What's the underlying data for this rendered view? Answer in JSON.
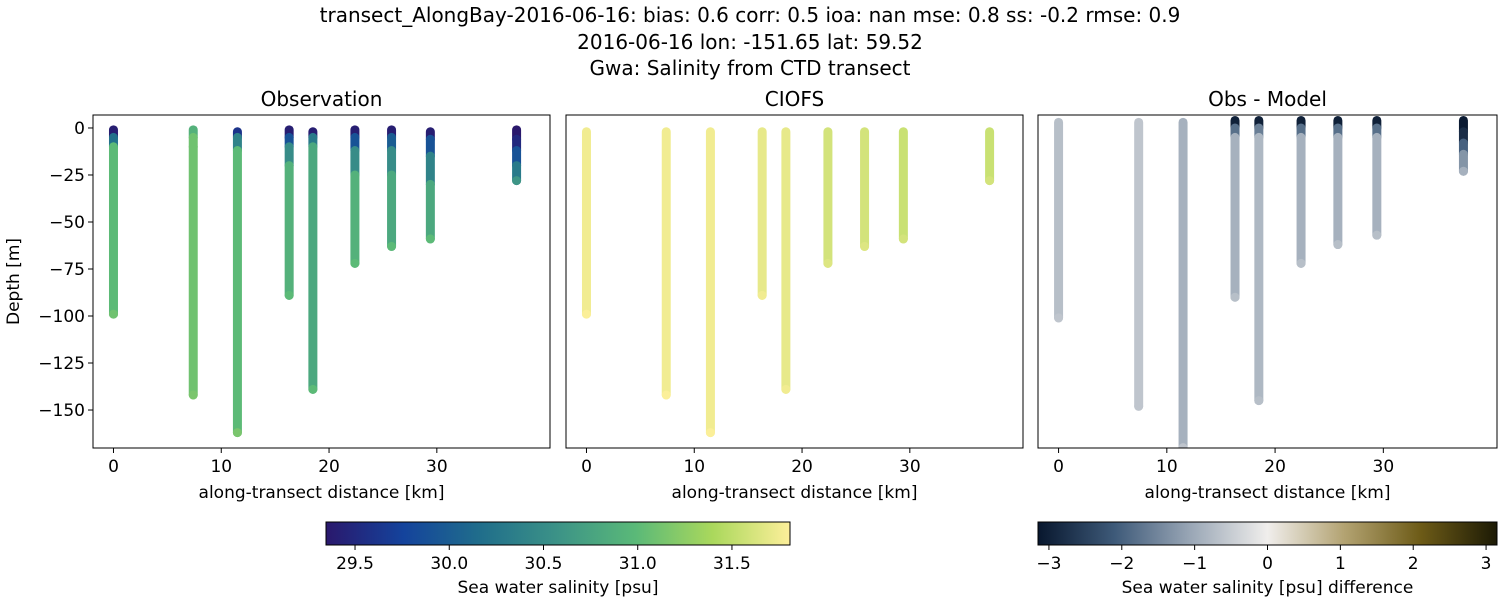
{
  "title": [
    "transect_AlongBay-2016-06-16: bias: 0.6  corr: 0.5  ioa: nan  mse: 0.8  ss: -0.2  rmse: 0.9",
    "2016-06-16 lon: -151.65 lat: 59.52",
    "Gwa: Salinity from CTD transect"
  ],
  "chart_data": [
    {
      "type": "scatter",
      "title": "Observation",
      "xlabel": "along-transect distance [km]",
      "ylabel": "Depth [m]",
      "colorbar": 0,
      "xlim": [
        -1.9,
        40.5
      ],
      "ylim": [
        -170.2,
        6.9
      ],
      "xticks": [
        0,
        10,
        20,
        30
      ],
      "yticks": [
        0,
        {
          "value": -25,
          "label": "−25"
        },
        {
          "value": -50,
          "label": "−50"
        },
        {
          "value": -75,
          "label": "−75"
        },
        {
          "value": -100,
          "label": "−100"
        },
        {
          "value": -125,
          "label": "−125"
        },
        {
          "value": -150,
          "label": "−150"
        }
      ],
      "profiles": [
        {
          "x": 0,
          "depth": [
            -1,
            -5,
            -10,
            -99
          ],
          "values": [
            29.4,
            30.2,
            31.0,
            31.1
          ]
        },
        {
          "x": 7.4,
          "depth": [
            -1,
            -5,
            -10,
            -142
          ],
          "values": [
            30.9,
            31.1,
            31.1,
            31.15
          ]
        },
        {
          "x": 11.5,
          "depth": [
            -2,
            -5,
            -12,
            -162
          ],
          "values": [
            29.6,
            30.4,
            31.0,
            31.15
          ]
        },
        {
          "x": 16.3,
          "depth": [
            -1,
            -5,
            -10,
            -20,
            -89
          ],
          "values": [
            29.4,
            29.9,
            30.5,
            30.9,
            31.0
          ]
        },
        {
          "x": 18.5,
          "depth": [
            -2,
            -5,
            -10,
            -139
          ],
          "values": [
            29.4,
            30.3,
            30.8,
            31.0
          ]
        },
        {
          "x": 22.4,
          "depth": [
            -1,
            -5,
            -12,
            -25,
            -72
          ],
          "values": [
            29.4,
            29.9,
            30.5,
            30.9,
            31.0
          ]
        },
        {
          "x": 25.8,
          "depth": [
            -1,
            -5,
            -12,
            -25,
            -63
          ],
          "values": [
            29.4,
            30.0,
            30.5,
            30.8,
            31.0
          ]
        },
        {
          "x": 29.4,
          "depth": [
            -2,
            -6,
            -15,
            -30,
            -59
          ],
          "values": [
            29.4,
            29.9,
            30.4,
            30.8,
            31.0
          ]
        },
        {
          "x": 37.4,
          "depth": [
            -1,
            -6,
            -12,
            -20,
            -28
          ],
          "values": [
            29.3,
            29.5,
            29.9,
            30.3,
            30.6
          ]
        }
      ]
    },
    {
      "type": "scatter",
      "title": "CIOFS",
      "xlabel": "along-transect distance [km]",
      "colorbar": 0,
      "xlim": [
        -1.9,
        40.5
      ],
      "ylim": [
        -170.2,
        6.9
      ],
      "xticks": [
        0,
        10,
        20,
        30
      ],
      "profiles": [
        {
          "x": 0,
          "depth": [
            -2,
            -99
          ],
          "values": [
            31.75,
            31.8
          ]
        },
        {
          "x": 7.4,
          "depth": [
            -2,
            -142
          ],
          "values": [
            31.75,
            31.8
          ]
        },
        {
          "x": 11.5,
          "depth": [
            -2,
            -162
          ],
          "values": [
            31.75,
            31.8
          ]
        },
        {
          "x": 16.3,
          "depth": [
            -2,
            -89
          ],
          "values": [
            31.7,
            31.75
          ]
        },
        {
          "x": 18.5,
          "depth": [
            -2,
            -139
          ],
          "values": [
            31.7,
            31.75
          ]
        },
        {
          "x": 22.4,
          "depth": [
            -2,
            -72
          ],
          "values": [
            31.6,
            31.65
          ]
        },
        {
          "x": 25.8,
          "depth": [
            -2,
            -63
          ],
          "values": [
            31.6,
            31.65
          ]
        },
        {
          "x": 29.4,
          "depth": [
            -2,
            -59
          ],
          "values": [
            31.55,
            31.6
          ]
        },
        {
          "x": 37.4,
          "depth": [
            -2,
            -28
          ],
          "values": [
            31.55,
            31.6
          ]
        }
      ]
    },
    {
      "type": "scatter",
      "title": "Obs - Model",
      "xlabel": "along-transect distance [km]",
      "colorbar": 1,
      "xlim": [
        -1.9,
        40.5
      ],
      "ylim": [
        -170.2,
        6.9
      ],
      "xticks": [
        0,
        10,
        20,
        30
      ],
      "profiles": [
        {
          "x": 0,
          "depth": [
            3,
            -101
          ],
          "values": [
            -0.7,
            -0.6
          ]
        },
        {
          "x": 7.4,
          "depth": [
            3,
            -148
          ],
          "values": [
            -0.6,
            -0.6
          ]
        },
        {
          "x": 11.5,
          "depth": [
            3,
            -170
          ],
          "values": [
            -0.9,
            -0.6
          ]
        },
        {
          "x": 16.3,
          "depth": [
            4,
            0,
            -5,
            -90
          ],
          "values": [
            -3,
            -1.8,
            -0.9,
            -0.7
          ]
        },
        {
          "x": 18.5,
          "depth": [
            4,
            0,
            -5,
            -145
          ],
          "values": [
            -3,
            -1.6,
            -0.8,
            -0.7
          ]
        },
        {
          "x": 22.4,
          "depth": [
            4,
            0,
            -5,
            -72
          ],
          "values": [
            -3,
            -1.8,
            -0.9,
            -0.7
          ]
        },
        {
          "x": 25.8,
          "depth": [
            4,
            0,
            -5,
            -62
          ],
          "values": [
            -3,
            -1.8,
            -0.9,
            -0.7
          ]
        },
        {
          "x": 29.4,
          "depth": [
            4,
            0,
            -5,
            -57
          ],
          "values": [
            -3,
            -1.8,
            -0.9,
            -0.7
          ]
        },
        {
          "x": 37.4,
          "depth": [
            4,
            -2,
            -8,
            -14,
            -23
          ],
          "values": [
            -3.1,
            -2.8,
            -2.0,
            -1.3,
            -0.9
          ]
        }
      ]
    }
  ],
  "colorbars": [
    {
      "label": "Sea water salinity [psu]",
      "clim": [
        29.346,
        31.808
      ],
      "colormap": [
        "#2a186c",
        "#14439c",
        "#206e8b",
        "#3c9387",
        "#5ab978",
        "#aad85c",
        "#fdef9a"
      ],
      "ticks": [
        29.5,
        {
          "value": 30,
          "label": "30.0"
        },
        30.5,
        {
          "value": 31,
          "label": "31.0"
        },
        31.5
      ]
    },
    {
      "label": "Sea water salinity [psu] difference",
      "clim": [
        -3.15,
        3.15
      ],
      "colormap": [
        "#08172e",
        "#3e5a79",
        "#9aa7b6",
        "#f0eeec",
        "#b3a372",
        "#6d5b17",
        "#1c1a05"
      ],
      "ticks": [
        {
          "value": -3,
          "label": "−3"
        },
        {
          "value": -2,
          "label": "−2"
        },
        {
          "value": -1,
          "label": "−1"
        },
        0,
        1,
        2,
        3
      ]
    }
  ]
}
